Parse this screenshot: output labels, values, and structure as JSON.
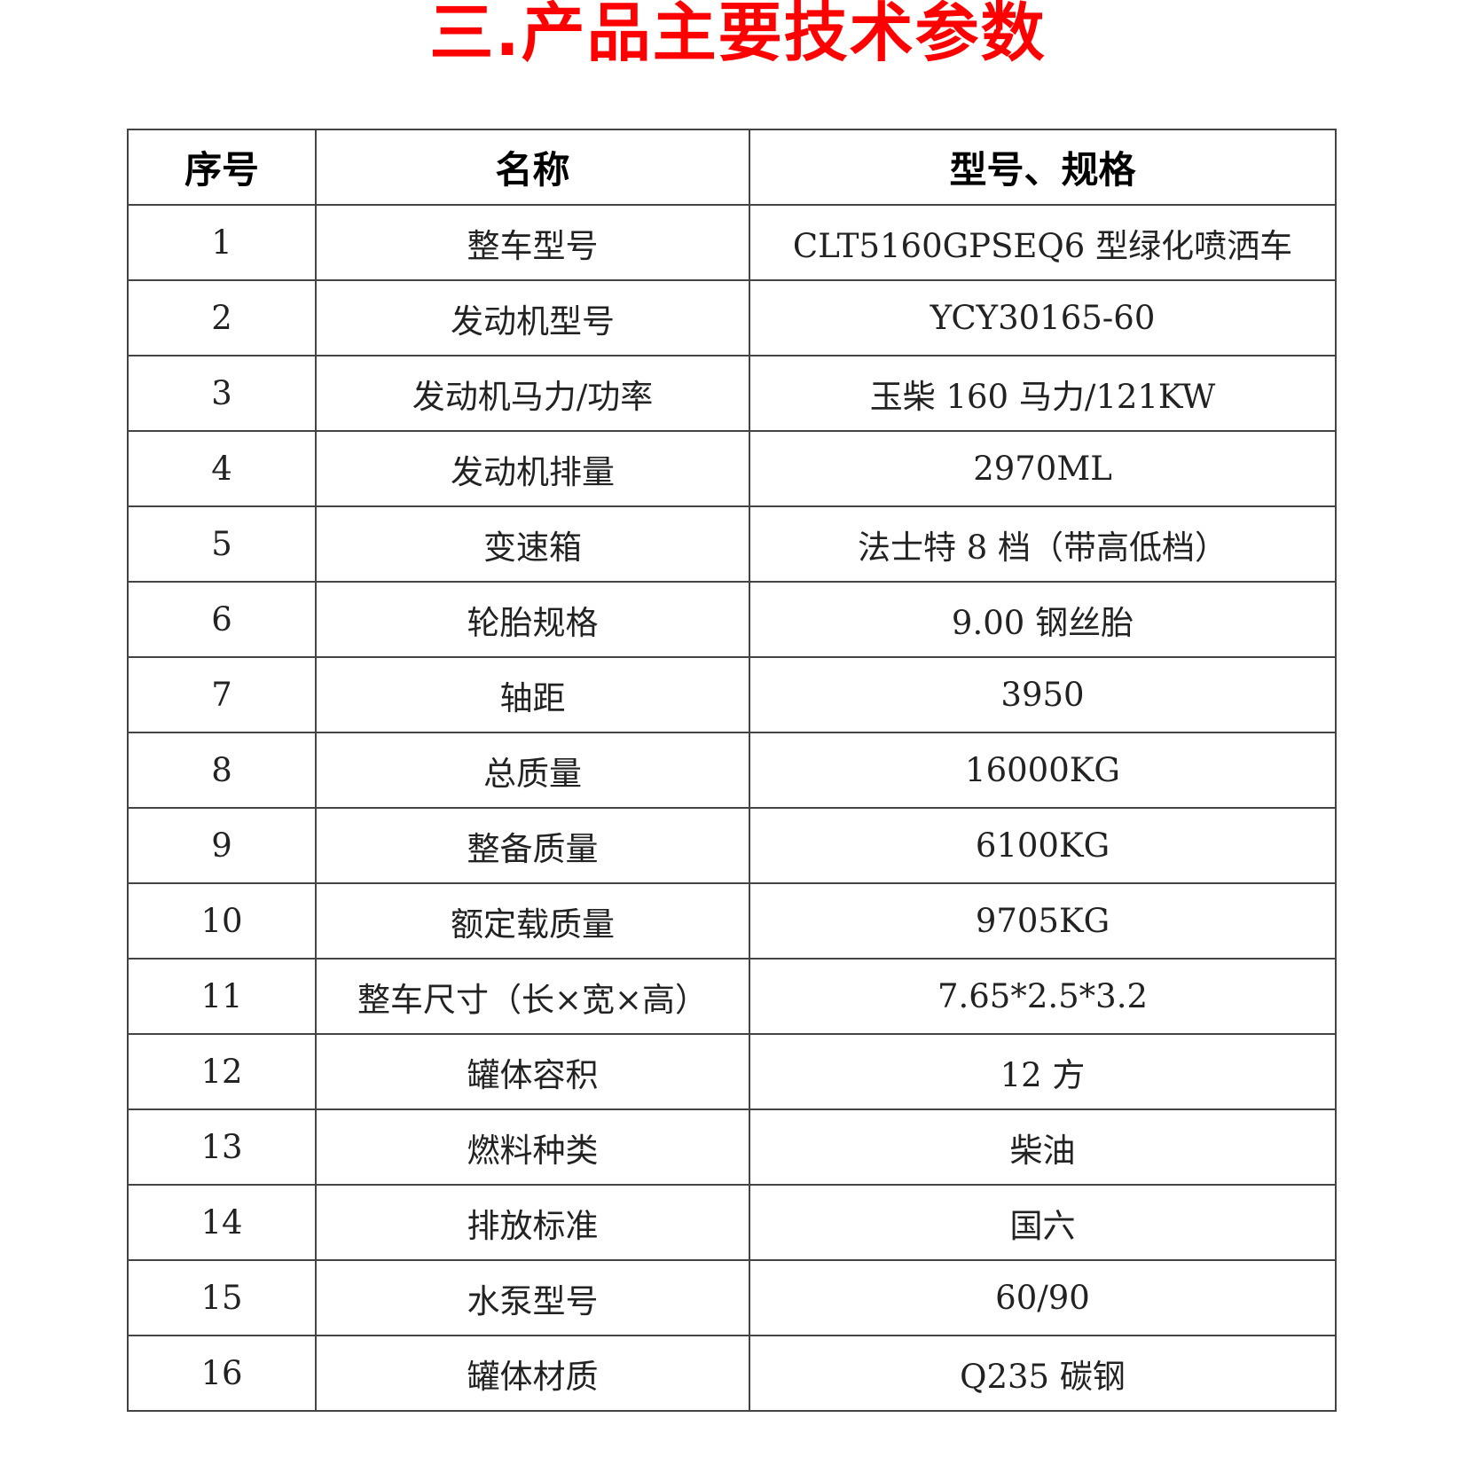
{
  "title": "三.产品主要技术参数",
  "table": {
    "headers": [
      "序号",
      "名称",
      "型号、规格"
    ],
    "rows": [
      [
        "1",
        "整车型号",
        "CLT5160GPSEQ6 型绿化喷洒车"
      ],
      [
        "2",
        "发动机型号",
        "YCY30165-60"
      ],
      [
        "3",
        "发动机马力/功率",
        "玉柴 160 马力/121KW"
      ],
      [
        "4",
        "发动机排量",
        "2970ML"
      ],
      [
        "5",
        "变速箱",
        "法士特 8 档（带高低档）"
      ],
      [
        "6",
        "轮胎规格",
        "9.00 钢丝胎"
      ],
      [
        "7",
        "轴距",
        "3950"
      ],
      [
        "8",
        "总质量",
        "16000KG"
      ],
      [
        "9",
        "整备质量",
        "6100KG"
      ],
      [
        "10",
        "额定载质量",
        "9705KG"
      ],
      [
        "11",
        "整车尺寸（长×宽×高）",
        "7.65*2.5*3.2"
      ],
      [
        "12",
        "罐体容积",
        "12 方"
      ],
      [
        "13",
        "燃料种类",
        "柴油"
      ],
      [
        "14",
        "排放标准",
        "国六"
      ],
      [
        "15",
        "水泵型号",
        "60/90"
      ],
      [
        "16",
        "罐体材质",
        "Q235 碳钢"
      ]
    ]
  },
  "colors": {
    "title": "#ff0000",
    "border": "#444444"
  }
}
